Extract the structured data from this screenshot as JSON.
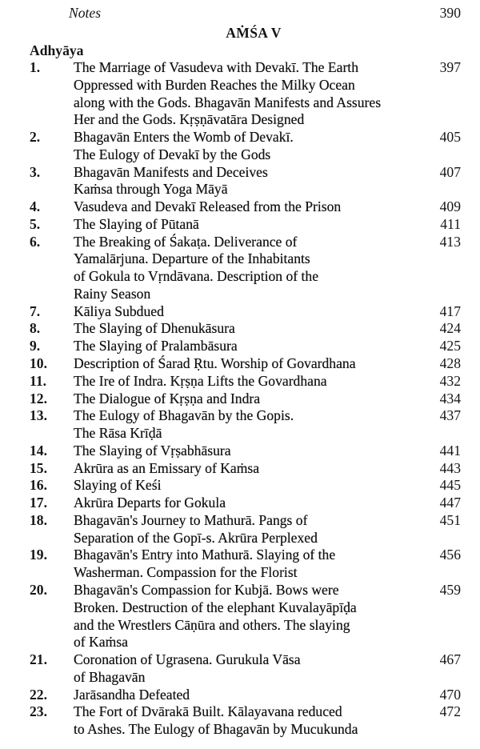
{
  "header": {
    "notes_label": "Notes",
    "notes_page": "390",
    "section_title": "AṀŚA V",
    "column_label": "Adhyāya"
  },
  "entries": [
    {
      "num": "1.",
      "lines": [
        "The Marriage of Vasudeva with Devakī. The Earth",
        "Oppressed with Burden Reaches the Milky Ocean",
        "along with the Gods. Bhagavān Manifests and Assures",
        "Her and the Gods. Kṛṣṇāvatāra Designed"
      ],
      "page": "397"
    },
    {
      "num": "2.",
      "lines": [
        "Bhagavān Enters the Womb of Devakī.",
        "The Eulogy of Devakī by the Gods"
      ],
      "page": "405"
    },
    {
      "num": "3.",
      "lines": [
        "Bhagavān Manifests and Deceives",
        "Kaṁsa through Yoga Māyā"
      ],
      "page": "407"
    },
    {
      "num": "4.",
      "lines": [
        "Vasudeva and Devakī Released from the Prison"
      ],
      "page": "409"
    },
    {
      "num": "5.",
      "lines": [
        "The Slaying of Pūtanā"
      ],
      "page": "411"
    },
    {
      "num": "6.",
      "lines": [
        "The Breaking of Śakaṭa. Deliverance of",
        "Yamalārjuna. Departure of the Inhabitants",
        "of Gokula to Vṛndāvana. Description of the",
        "Rainy Season"
      ],
      "page": "413"
    },
    {
      "num": "7.",
      "lines": [
        "Kāliya Subdued"
      ],
      "page": "417"
    },
    {
      "num": "8.",
      "lines": [
        "The Slaying of Dhenukāsura"
      ],
      "page": "424"
    },
    {
      "num": "9.",
      "lines": [
        "The Slaying of Pralambāsura"
      ],
      "page": "425"
    },
    {
      "num": "10.",
      "lines": [
        "Description of Śarad Ṛtu. Worship of Govardhana"
      ],
      "page": "428"
    },
    {
      "num": "11.",
      "lines": [
        "The Ire of Indra. Kṛṣṇa Lifts the Govardhana"
      ],
      "page": "432"
    },
    {
      "num": "12.",
      "lines": [
        "The Dialogue of Kṛṣṇa and Indra"
      ],
      "page": "434"
    },
    {
      "num": "13.",
      "lines": [
        "The Eulogy of Bhagavān by the Gopis.",
        "The Rāsa Krīḍā"
      ],
      "page": "437"
    },
    {
      "num": "14.",
      "lines": [
        "The Slaying of Vṛṣabhāsura"
      ],
      "page": "441"
    },
    {
      "num": "15.",
      "lines": [
        "Akrūra as an Emissary of Kaṁsa"
      ],
      "page": "443"
    },
    {
      "num": "16.",
      "lines": [
        "Slaying of Keśi"
      ],
      "page": "445"
    },
    {
      "num": "17.",
      "lines": [
        "Akrūra Departs for Gokula"
      ],
      "page": "447"
    },
    {
      "num": "18.",
      "lines": [
        "Bhagavān's Journey to Mathurā. Pangs of",
        "Separation of the Gopī-s. Akrūra Perplexed"
      ],
      "page": "451"
    },
    {
      "num": "19.",
      "lines": [
        "Bhagavān's Entry into Mathurā. Slaying of the",
        "Washerman. Compassion for the Florist"
      ],
      "page": "456"
    },
    {
      "num": "20.",
      "lines": [
        "Bhagavān's Compassion for Kubjā. Bows were",
        "Broken. Destruction of the elephant Kuvalayāpīḍa",
        "and the Wrestlers Cāṇūra and others. The slaying",
        "of Kaṁsa"
      ],
      "page": "459"
    },
    {
      "num": "21.",
      "lines": [
        "Coronation of Ugrasena. Gurukula Vāsa",
        "of Bhagavān"
      ],
      "page": "467"
    },
    {
      "num": "22.",
      "lines": [
        "Jarāsandha Defeated"
      ],
      "page": "470"
    },
    {
      "num": "23.",
      "lines": [
        "The Fort of Dvārakā Built. Kālayavana reduced",
        "to Ashes. The Eulogy of Bhagavān by Mucukunda"
      ],
      "page": "472"
    }
  ]
}
